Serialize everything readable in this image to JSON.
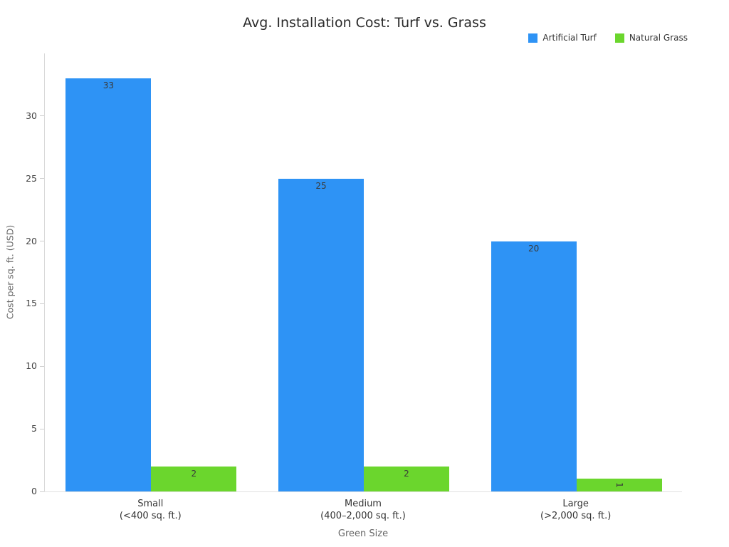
{
  "chart_data": {
    "type": "bar",
    "title": "Avg. Installation Cost: Turf vs. Grass",
    "categories": [
      "Small\n(<400 sq. ft.)",
      "Medium\n(400–2,000 sq. ft.)",
      "Large\n(>2,000 sq. ft.)"
    ],
    "series": [
      {
        "name": "Artificial Turf",
        "color": "#2E93F5",
        "values": [
          33,
          25,
          20
        ]
      },
      {
        "name": "Natural Grass",
        "color": "#6BD62D",
        "values": [
          2,
          2,
          1
        ]
      }
    ],
    "xlabel": "Green Size",
    "ylabel": "Cost per sq. ft. (USD)",
    "ylim": [
      0,
      35
    ],
    "yticks": [
      0,
      5,
      10,
      15,
      20,
      25,
      30
    ],
    "grid": false,
    "legend_position": "top-right",
    "value_labels": "inside-top",
    "background_color": "#ffffff",
    "axis_line_color": "#d9d9d9"
  }
}
